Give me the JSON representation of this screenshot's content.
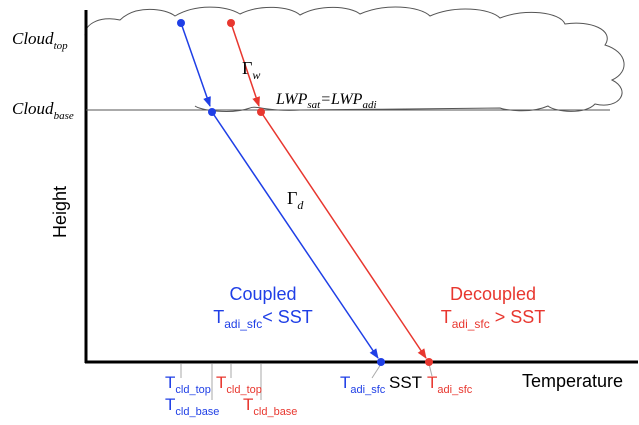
{
  "y_labels": [
    {
      "text": "Cloud",
      "sub": "top"
    },
    {
      "text": "Cloud",
      "sub": "base"
    }
  ],
  "y_axis_title": "Height",
  "x_axis_title": "Temperature",
  "lapse_rates": [
    {
      "text": "Γ",
      "sub": "w"
    },
    {
      "text": "Γ",
      "sub": "d"
    }
  ],
  "equation": {
    "left": "LWP",
    "left_sub": "sat",
    "operator": "=",
    "right": "LWP",
    "right_sub": "adi"
  },
  "regimes": [
    {
      "title": "Coupled",
      "symbol": "T",
      "sub": "adi_sfc",
      "relation": "< SST"
    },
    {
      "title": "Decoupled",
      "symbol": "T",
      "sub": "adi_sfc",
      "relation": " > SST"
    }
  ],
  "x_labels": [
    {
      "text": "T",
      "sub": "cld_top"
    },
    {
      "text": "T",
      "sub": "cld_top"
    },
    {
      "text": "T",
      "sub": "cld_base"
    },
    {
      "text": "T",
      "sub": "cld_base"
    },
    {
      "text": "T",
      "sub": "adi_sfc"
    },
    {
      "text": "SST"
    },
    {
      "text": "T",
      "sub": "adi_sfc"
    }
  ]
}
